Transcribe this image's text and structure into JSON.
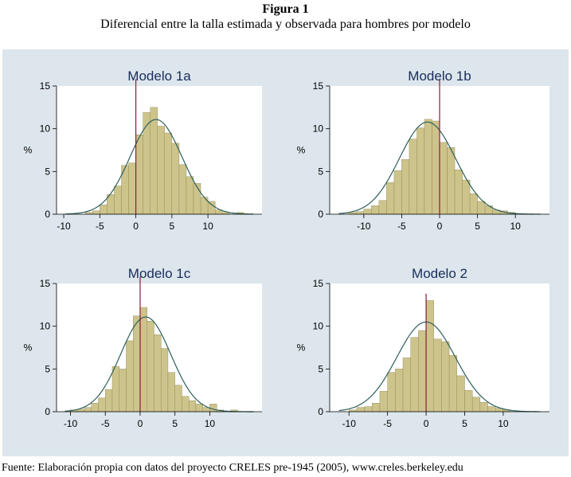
{
  "figure": {
    "title": "Figura 1",
    "subtitle": "Diferencial entre la talla estimada y observada para hombres por modelo",
    "source": "Fuente: Elaboración propia con datos del proyecto CRELES pre-1945 (2005), www.creles.berkeley.edu"
  },
  "colors": {
    "panel_bg": "#dce6ec",
    "plot_bg": "#ffffff",
    "bar_fill": "#cdc48c",
    "bar_stroke": "#8c8450",
    "curve": "#2e5f5a",
    "ref_line": "#8b1a3a"
  },
  "chart_data": [
    {
      "type": "bar",
      "title": "Modelo 1a",
      "ylabel": "%",
      "xlim": [
        -11,
        17.5
      ],
      "ylim": [
        0,
        15
      ],
      "xticks": [
        -10,
        -5,
        0,
        5,
        10
      ],
      "yticks": [
        0,
        5,
        10,
        15
      ],
      "ref_x": 0,
      "ref_top": 15.8,
      "bin_width": 1,
      "bins": [
        {
          "x": -6.5,
          "h": 0.2
        },
        {
          "x": -5.5,
          "h": 0.4
        },
        {
          "x": -4.5,
          "h": 1.1
        },
        {
          "x": -3.5,
          "h": 2.3
        },
        {
          "x": -2.5,
          "h": 3.3
        },
        {
          "x": -1.5,
          "h": 5.7
        },
        {
          "x": -0.5,
          "h": 6.0
        },
        {
          "x": 0.5,
          "h": 9.3
        },
        {
          "x": 1.5,
          "h": 11.9
        },
        {
          "x": 2.5,
          "h": 12.5
        },
        {
          "x": 3.5,
          "h": 10.3
        },
        {
          "x": 4.5,
          "h": 9.5
        },
        {
          "x": 5.5,
          "h": 8.3
        },
        {
          "x": 6.5,
          "h": 5.8
        },
        {
          "x": 7.5,
          "h": 4.4
        },
        {
          "x": 8.5,
          "h": 3.6
        },
        {
          "x": 9.5,
          "h": 2.0
        },
        {
          "x": 10.5,
          "h": 1.5
        },
        {
          "x": 11.5,
          "h": 0.5
        },
        {
          "x": 12.5,
          "h": 0.2
        },
        {
          "x": 14.5,
          "h": 0.2
        }
      ],
      "normal": {
        "mean": 2.8,
        "sd": 3.6
      }
    },
    {
      "type": "bar",
      "title": "Modelo 1b",
      "ylabel": "%",
      "xlim": [
        -14.5,
        14.5
      ],
      "ylim": [
        0,
        15
      ],
      "xticks": [
        -10,
        -5,
        0,
        5,
        10
      ],
      "yticks": [
        0,
        5,
        10,
        15
      ],
      "ref_x": 0,
      "ref_top": 15.8,
      "bin_width": 1,
      "bins": [
        {
          "x": -11.5,
          "h": 0.2
        },
        {
          "x": -10.5,
          "h": 0.3
        },
        {
          "x": -9.5,
          "h": 0.6
        },
        {
          "x": -8.5,
          "h": 1.0
        },
        {
          "x": -7.5,
          "h": 1.6
        },
        {
          "x": -6.5,
          "h": 3.7
        },
        {
          "x": -5.5,
          "h": 5.1
        },
        {
          "x": -4.5,
          "h": 6.4
        },
        {
          "x": -3.5,
          "h": 8.8
        },
        {
          "x": -2.5,
          "h": 10.1
        },
        {
          "x": -1.5,
          "h": 11.1
        },
        {
          "x": -0.5,
          "h": 10.9
        },
        {
          "x": 0.5,
          "h": 8.4
        },
        {
          "x": 1.5,
          "h": 7.8
        },
        {
          "x": 2.5,
          "h": 5.2
        },
        {
          "x": 3.5,
          "h": 4.0
        },
        {
          "x": 4.5,
          "h": 2.4
        },
        {
          "x": 5.5,
          "h": 1.5
        },
        {
          "x": 6.5,
          "h": 1.0
        },
        {
          "x": 7.5,
          "h": 0.5
        },
        {
          "x": 8.5,
          "h": 0.4
        },
        {
          "x": 9.5,
          "h": 0.2
        }
      ],
      "normal": {
        "mean": -1.6,
        "sd": 3.7
      }
    },
    {
      "type": "bar",
      "title": "Modelo 1c",
      "ylabel": "%",
      "xlim": [
        -12,
        17.5
      ],
      "ylim": [
        0,
        15
      ],
      "xticks": [
        -10,
        -5,
        0,
        5,
        10
      ],
      "yticks": [
        0,
        5,
        10,
        15
      ],
      "ref_x": 0,
      "ref_top": 15.8,
      "bin_width": 1,
      "bins": [
        {
          "x": -9.5,
          "h": 0.2
        },
        {
          "x": -8.5,
          "h": 0.3
        },
        {
          "x": -7.5,
          "h": 0.5
        },
        {
          "x": -6.5,
          "h": 1.0
        },
        {
          "x": -5.5,
          "h": 1.6
        },
        {
          "x": -4.5,
          "h": 2.6
        },
        {
          "x": -3.5,
          "h": 5.3
        },
        {
          "x": -2.5,
          "h": 5.0
        },
        {
          "x": -1.5,
          "h": 8.3
        },
        {
          "x": -0.5,
          "h": 11.2
        },
        {
          "x": 0.5,
          "h": 12.2
        },
        {
          "x": 1.5,
          "h": 10.6
        },
        {
          "x": 2.5,
          "h": 9.0
        },
        {
          "x": 3.5,
          "h": 7.4
        },
        {
          "x": 4.5,
          "h": 4.6
        },
        {
          "x": 5.5,
          "h": 3.1
        },
        {
          "x": 6.5,
          "h": 1.8
        },
        {
          "x": 7.5,
          "h": 1.3
        },
        {
          "x": 8.5,
          "h": 0.9
        },
        {
          "x": 9.5,
          "h": 0.5
        },
        {
          "x": 10.5,
          "h": 0.9
        },
        {
          "x": 11.5,
          "h": 0.2
        },
        {
          "x": 13.5,
          "h": 0.2
        }
      ],
      "normal": {
        "mean": 0.8,
        "sd": 3.6
      }
    },
    {
      "type": "bar",
      "title": "Modelo 2",
      "ylabel": "%",
      "xlim": [
        -12.5,
        16
      ],
      "ylim": [
        0,
        15
      ],
      "xticks": [
        -10,
        -5,
        0,
        5,
        10
      ],
      "yticks": [
        0,
        5,
        10,
        15
      ],
      "ref_x": 0,
      "ref_top": 13.8,
      "bin_width": 1,
      "bins": [
        {
          "x": -9.5,
          "h": 0.2
        },
        {
          "x": -8.5,
          "h": 0.5
        },
        {
          "x": -7.5,
          "h": 0.6
        },
        {
          "x": -6.5,
          "h": 1.0
        },
        {
          "x": -5.5,
          "h": 2.4
        },
        {
          "x": -4.5,
          "h": 4.6
        },
        {
          "x": -3.5,
          "h": 5.0
        },
        {
          "x": -2.5,
          "h": 6.3
        },
        {
          "x": -1.5,
          "h": 8.7
        },
        {
          "x": -0.5,
          "h": 9.5
        },
        {
          "x": 0.5,
          "h": 13.0
        },
        {
          "x": 1.5,
          "h": 8.5
        },
        {
          "x": 2.5,
          "h": 8.2
        },
        {
          "x": 3.5,
          "h": 6.6
        },
        {
          "x": 4.5,
          "h": 4.2
        },
        {
          "x": 5.5,
          "h": 2.5
        },
        {
          "x": 6.5,
          "h": 1.7
        },
        {
          "x": 7.5,
          "h": 1.1
        },
        {
          "x": 8.5,
          "h": 0.6
        },
        {
          "x": 9.5,
          "h": 0.4
        },
        {
          "x": 10.5,
          "h": 0.2
        }
      ],
      "normal": {
        "mean": 0.0,
        "sd": 3.8
      }
    }
  ]
}
